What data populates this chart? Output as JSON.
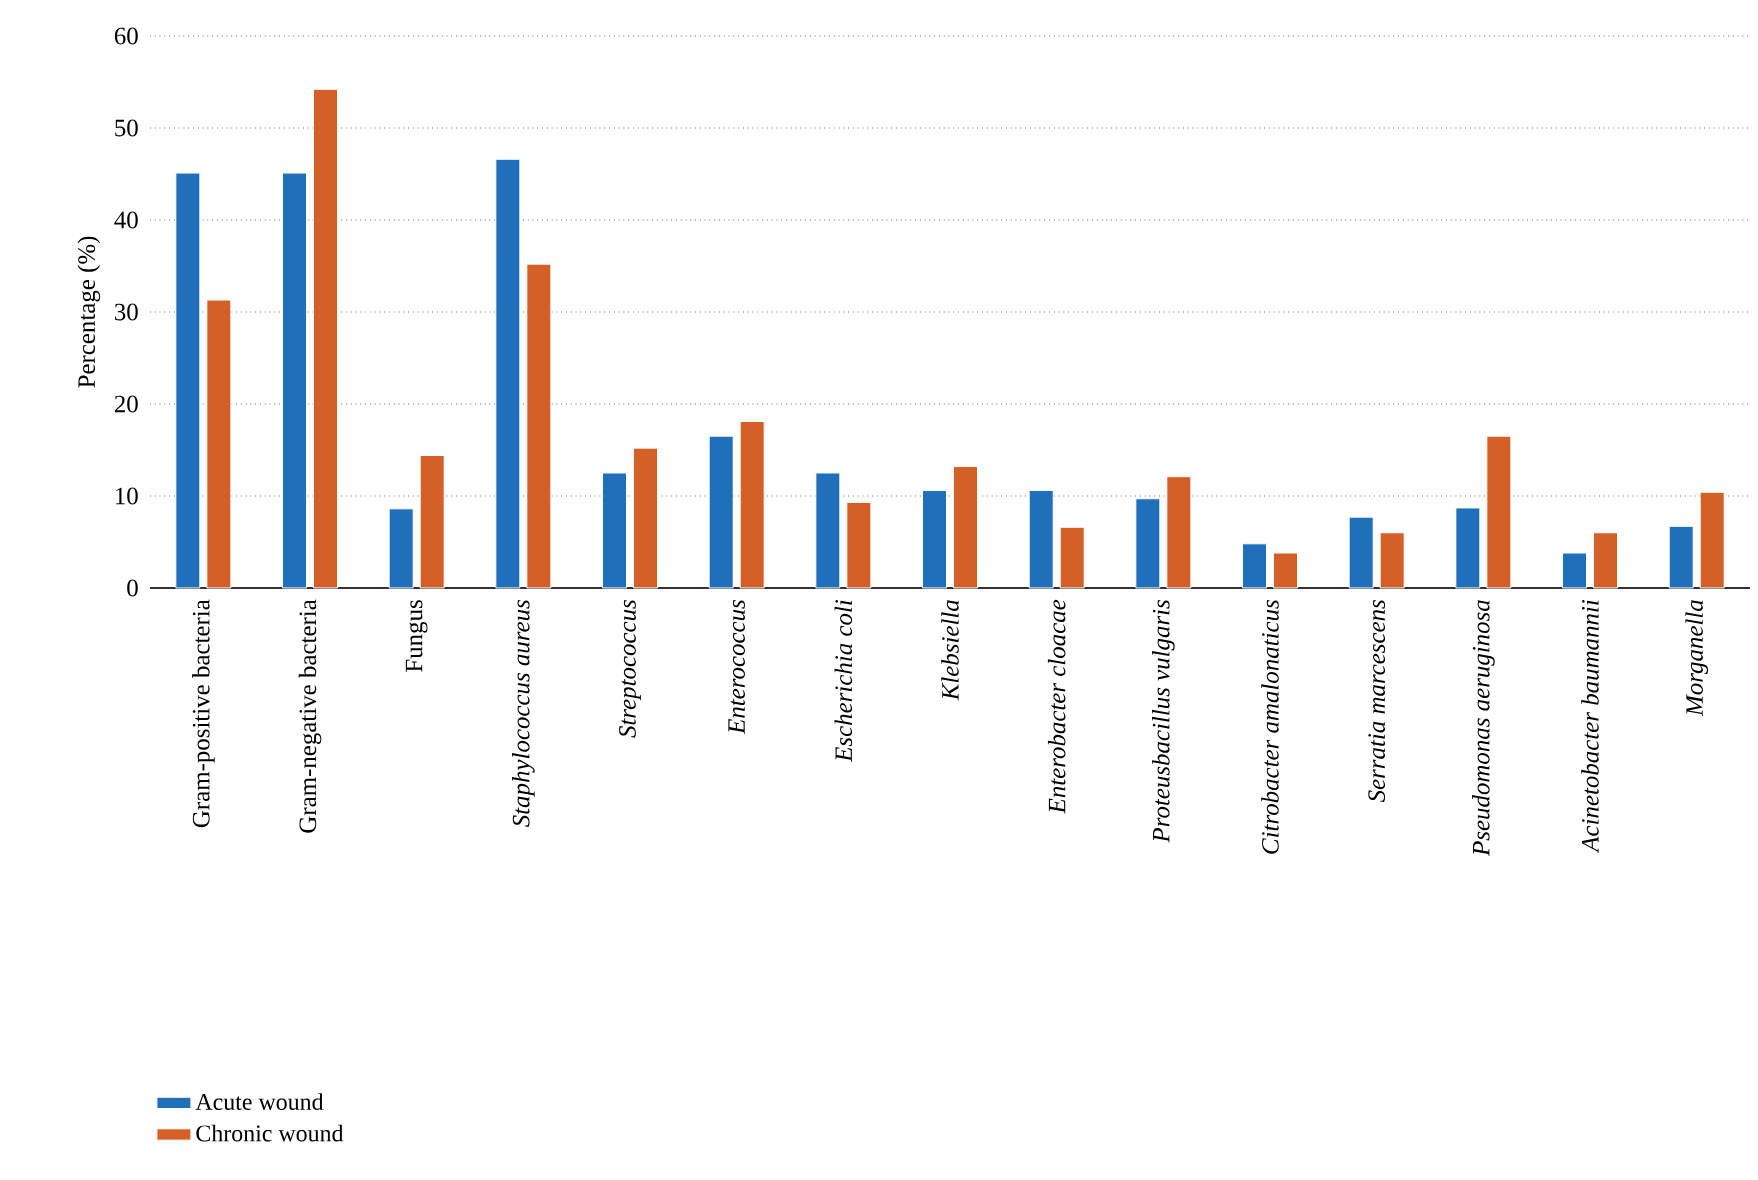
{
  "chart_data": {
    "type": "bar",
    "ylabel": "Percentage (%)",
    "categories": [
      "Gram-positive bacteria",
      "Gram-negative bacteria",
      "Fungus",
      "*Staphylococcus aureus*",
      "*Streptococcus*",
      "*Enterococcus*",
      "*Escherichia coli*",
      "*Klebsiella*",
      "*Enterobacter cloacae*",
      "*Proteusbacillus vulgaris*",
      "*Citrobacter amalonaticus*",
      "*Serratia marcescens*",
      "*Pseudomonas aeruginosa*",
      "*Acinetobacter baumannii*",
      "*Morganella*"
    ],
    "series": [
      {
        "name": "Acute wound",
        "color": "#1f6fba",
        "values": [
          45.1,
          45.1,
          8.6,
          46.6,
          12.5,
          16.5,
          12.5,
          10.6,
          10.6,
          9.7,
          4.8,
          7.7,
          8.7,
          3.8,
          6.7
        ]
      },
      {
        "name": "Chronic wound",
        "color": "#d45f27",
        "values": [
          31.3,
          54.2,
          14.4,
          35.2,
          15.2,
          18.1,
          9.3,
          13.2,
          6.6,
          12.1,
          3.8,
          6.0,
          16.5,
          6.0,
          10.4
        ]
      }
    ],
    "ylim": [
      0,
      60
    ],
    "yticks": [
      0,
      10,
      20,
      30,
      40,
      50,
      60
    ],
    "grid": "y",
    "legend": "bottom left"
  }
}
